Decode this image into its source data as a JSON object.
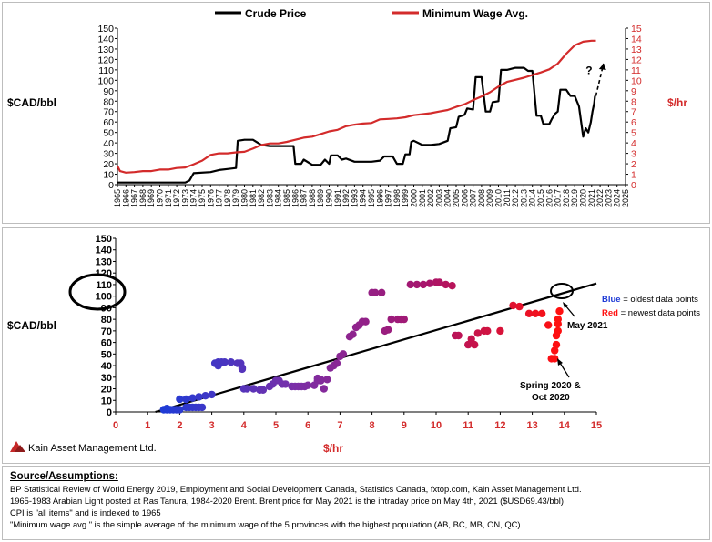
{
  "chart_data": [
    {
      "type": "line",
      "series": [
        {
          "name": "Crude Price",
          "axis": "left",
          "color": "#000000",
          "points": [
            [
              1965,
              2
            ],
            [
              1973,
              2
            ],
            [
              1973.5,
              4
            ],
            [
              1974,
              11
            ],
            [
              1976,
              12
            ],
            [
              1977,
              14
            ],
            [
              1978,
              15
            ],
            [
              1979,
              16
            ],
            [
              1979.2,
              42
            ],
            [
              1980,
              43
            ],
            [
              1981,
              43
            ],
            [
              1982,
              38
            ],
            [
              1983,
              37
            ],
            [
              1984,
              37
            ],
            [
              1985.8,
              37
            ],
            [
              1986,
              20
            ],
            [
              1986.7,
              20
            ],
            [
              1987,
              24
            ],
            [
              1988,
              19
            ],
            [
              1989,
              19
            ],
            [
              1989.5,
              24
            ],
            [
              1990,
              20
            ],
            [
              1990.2,
              28
            ],
            [
              1991,
              28
            ],
            [
              1991.5,
              24
            ],
            [
              1992,
              25
            ],
            [
              1993,
              22
            ],
            [
              1994,
              22
            ],
            [
              1995,
              22
            ],
            [
              1996,
              23
            ],
            [
              1996.5,
              27
            ],
            [
              1997.5,
              27
            ],
            [
              1998,
              20
            ],
            [
              1998.7,
              20
            ],
            [
              1999,
              29
            ],
            [
              1999.5,
              29
            ],
            [
              1999.7,
              41
            ],
            [
              2000,
              42
            ],
            [
              2001,
              38
            ],
            [
              2002,
              38
            ],
            [
              2003,
              39
            ],
            [
              2004,
              42
            ],
            [
              2004.3,
              54
            ],
            [
              2005,
              55
            ],
            [
              2005.3,
              65
            ],
            [
              2006,
              67
            ],
            [
              2006.3,
              73
            ],
            [
              2007,
              72
            ],
            [
              2007.3,
              103
            ],
            [
              2008,
              103
            ],
            [
              2008.5,
              70
            ],
            [
              2009,
              70
            ],
            [
              2009.3,
              79
            ],
            [
              2010,
              80
            ],
            [
              2010.3,
              110
            ],
            [
              2011,
              110
            ],
            [
              2012,
              112
            ],
            [
              2013,
              112
            ],
            [
              2013.5,
              109
            ],
            [
              2014,
              109
            ],
            [
              2014.5,
              66
            ],
            [
              2015,
              66
            ],
            [
              2015.3,
              58
            ],
            [
              2016,
              58
            ],
            [
              2016.3,
              63
            ],
            [
              2016.7,
              68
            ],
            [
              2017,
              70
            ],
            [
              2017.3,
              91
            ],
            [
              2018,
              91
            ],
            [
              2018.5,
              85
            ],
            [
              2019,
              85
            ],
            [
              2019.5,
              75
            ],
            [
              2020,
              46
            ],
            [
              2020.3,
              54
            ],
            [
              2020.6,
              50
            ],
            [
              2020.9,
              60
            ],
            [
              2021.1,
              70
            ],
            [
              2021.3,
              78
            ],
            [
              2021.4,
              85
            ]
          ]
        },
        {
          "name": "Minimum Wage Avg.",
          "axis": "right",
          "color": "#d32b2b",
          "points": [
            [
              1965,
              1.8
            ],
            [
              1965.3,
              1.3
            ],
            [
              1966,
              1.15
            ],
            [
              1967,
              1.2
            ],
            [
              1968,
              1.3
            ],
            [
              1969,
              1.3
            ],
            [
              1970,
              1.45
            ],
            [
              1971,
              1.45
            ],
            [
              1972,
              1.6
            ],
            [
              1973,
              1.65
            ],
            [
              1974,
              1.95
            ],
            [
              1975,
              2.3
            ],
            [
              1976,
              2.85
            ],
            [
              1977,
              3.0
            ],
            [
              1978,
              3.0
            ],
            [
              1979,
              3.1
            ],
            [
              1980,
              3.15
            ],
            [
              1981,
              3.45
            ],
            [
              1982,
              3.8
            ],
            [
              1983,
              3.95
            ],
            [
              1984,
              3.95
            ],
            [
              1985,
              4.1
            ],
            [
              1986,
              4.3
            ],
            [
              1987,
              4.5
            ],
            [
              1988,
              4.6
            ],
            [
              1989,
              4.85
            ],
            [
              1990,
              5.1
            ],
            [
              1991,
              5.25
            ],
            [
              1992,
              5.6
            ],
            [
              1993,
              5.75
            ],
            [
              1994,
              5.85
            ],
            [
              1995,
              5.9
            ],
            [
              1996,
              6.25
            ],
            [
              1997,
              6.3
            ],
            [
              1998,
              6.35
            ],
            [
              1999,
              6.45
            ],
            [
              2000,
              6.65
            ],
            [
              2001,
              6.75
            ],
            [
              2002,
              6.85
            ],
            [
              2003,
              7.0
            ],
            [
              2004,
              7.15
            ],
            [
              2005,
              7.45
            ],
            [
              2006,
              7.7
            ],
            [
              2007,
              8.1
            ],
            [
              2008,
              8.45
            ],
            [
              2009,
              8.85
            ],
            [
              2010,
              9.4
            ],
            [
              2011,
              9.85
            ],
            [
              2012,
              10.05
            ],
            [
              2013,
              10.25
            ],
            [
              2014,
              10.5
            ],
            [
              2015,
              10.75
            ],
            [
              2016,
              11.05
            ],
            [
              2017,
              11.6
            ],
            [
              2018,
              12.55
            ],
            [
              2019,
              13.35
            ],
            [
              2020,
              13.7
            ],
            [
              2021,
              13.8
            ],
            [
              2021.5,
              13.8
            ]
          ]
        }
      ],
      "x_ticks": [
        "1965",
        "1966",
        "1967",
        "1968",
        "1969",
        "1970",
        "1971",
        "1972",
        "1973",
        "1974",
        "1975",
        "1976",
        "1977",
        "1978",
        "1979",
        "1980",
        "1981",
        "1982",
        "1983",
        "1984",
        "1985",
        "1986",
        "1987",
        "1988",
        "1989",
        "1990",
        "1991",
        "1992",
        "1993",
        "1994",
        "1995",
        "1996",
        "1997",
        "1998",
        "1999",
        "2000",
        "2001",
        "2002",
        "2003",
        "2004",
        "2005",
        "2006",
        "2007",
        "2008",
        "2009",
        "2010",
        "2011",
        "2012",
        "2013",
        "2014",
        "2015",
        "2016",
        "2017",
        "2018",
        "2019",
        "2020",
        "2021",
        "2022",
        "2023",
        "2024",
        "2025"
      ],
      "xlim": [
        1965,
        2025
      ],
      "ylabel_left": "$CAD/bbl",
      "ylabel_right": "$/hr",
      "ylim_left": [
        0,
        150
      ],
      "ylim_right": [
        0,
        15
      ],
      "left_ticks": [
        "0",
        "10",
        "20",
        "30",
        "40",
        "50",
        "60",
        "70",
        "80",
        "90",
        "100",
        "110",
        "120",
        "130",
        "140",
        "150"
      ],
      "right_ticks": [
        "0",
        "1",
        "2",
        "3",
        "4",
        "5",
        "6",
        "7",
        "8",
        "9",
        "10",
        "11",
        "12",
        "13",
        "14",
        "15"
      ],
      "legend": [
        "Crude Price",
        "Minimum Wage Avg."
      ],
      "legend_position": "top",
      "annotation": "?",
      "annotation_arrow": {
        "from": [
          2021.5,
          85
        ],
        "to": [
          2022.4,
          116
        ]
      }
    },
    {
      "type": "scatter",
      "xlabel": "$/hr",
      "ylabel": "$CAD/bbl",
      "xlim": [
        0,
        15
      ],
      "ylim": [
        0,
        150
      ],
      "x_ticks": [
        "0",
        "1",
        "2",
        "3",
        "4",
        "5",
        "6",
        "7",
        "8",
        "9",
        "10",
        "11",
        "12",
        "13",
        "14",
        "15"
      ],
      "y_ticks": [
        "0",
        "10",
        "20",
        "30",
        "40",
        "50",
        "60",
        "70",
        "80",
        "90",
        "100",
        "110",
        "120",
        "130",
        "140",
        "150"
      ],
      "color_gradient": [
        "#1f3bd6",
        "#7a2fa8",
        "#a8156b",
        "#ff1010"
      ],
      "points": [
        [
          1.5,
          2
        ],
        [
          1.6,
          2
        ],
        [
          1.7,
          2
        ],
        [
          1.8,
          2
        ],
        [
          1.9,
          2
        ],
        [
          2.0,
          2
        ],
        [
          2.2,
          4
        ],
        [
          2.3,
          4
        ],
        [
          2.4,
          4
        ],
        [
          2.5,
          4
        ],
        [
          2.6,
          4
        ],
        [
          2.7,
          4
        ],
        [
          1.6,
          3
        ],
        [
          2.0,
          11
        ],
        [
          2.2,
          11
        ],
        [
          2.4,
          12
        ],
        [
          2.6,
          13
        ],
        [
          2.8,
          14
        ],
        [
          3.0,
          15
        ],
        [
          3.1,
          42
        ],
        [
          3.2,
          43
        ],
        [
          3.3,
          43
        ],
        [
          3.4,
          43
        ],
        [
          3.6,
          43
        ],
        [
          3.8,
          42
        ],
        [
          3.9,
          42
        ],
        [
          3.95,
          38
        ],
        [
          3.95,
          37
        ],
        [
          3.2,
          40
        ],
        [
          4.0,
          20
        ],
        [
          4.1,
          20
        ],
        [
          4.3,
          20
        ],
        [
          4.5,
          19
        ],
        [
          4.6,
          19
        ],
        [
          4.8,
          22
        ],
        [
          4.9,
          24
        ],
        [
          5.0,
          27
        ],
        [
          5.1,
          27
        ],
        [
          5.2,
          24
        ],
        [
          5.3,
          24
        ],
        [
          5.5,
          22
        ],
        [
          5.6,
          22
        ],
        [
          5.7,
          22
        ],
        [
          5.8,
          22
        ],
        [
          5.9,
          22
        ],
        [
          6.0,
          23
        ],
        [
          6.2,
          23
        ],
        [
          6.3,
          27
        ],
        [
          6.4,
          27
        ],
        [
          6.5,
          20
        ],
        [
          6.3,
          29
        ],
        [
          6.4,
          28
        ],
        [
          6.6,
          28
        ],
        [
          6.7,
          38
        ],
        [
          6.8,
          40
        ],
        [
          6.9,
          42
        ],
        [
          7.0,
          48
        ],
        [
          7.1,
          50
        ],
        [
          7.3,
          65
        ],
        [
          7.4,
          67
        ],
        [
          7.5,
          73
        ],
        [
          7.6,
          75
        ],
        [
          7.7,
          78
        ],
        [
          7.8,
          78
        ],
        [
          8.0,
          103
        ],
        [
          8.1,
          103
        ],
        [
          8.3,
          103
        ],
        [
          8.4,
          70
        ],
        [
          8.5,
          71
        ],
        [
          8.6,
          80
        ],
        [
          8.8,
          80
        ],
        [
          8.9,
          80
        ],
        [
          9.0,
          80
        ],
        [
          9.2,
          110
        ],
        [
          9.4,
          110
        ],
        [
          9.6,
          110
        ],
        [
          9.8,
          111
        ],
        [
          10.0,
          112
        ],
        [
          10.1,
          112
        ],
        [
          10.3,
          110
        ],
        [
          10.5,
          109
        ],
        [
          10.6,
          66
        ],
        [
          10.7,
          66
        ],
        [
          11.0,
          58
        ],
        [
          11.1,
          63
        ],
        [
          11.2,
          58
        ],
        [
          11.3,
          68
        ],
        [
          11.5,
          70
        ],
        [
          11.6,
          70
        ],
        [
          12.0,
          70
        ],
        [
          12.4,
          92
        ],
        [
          12.6,
          91
        ],
        [
          12.9,
          85
        ],
        [
          13.1,
          85
        ],
        [
          13.3,
          85
        ],
        [
          13.5,
          75
        ],
        [
          13.6,
          46
        ],
        [
          13.7,
          46
        ],
        [
          13.7,
          53
        ],
        [
          13.75,
          58
        ],
        [
          13.75,
          66
        ],
        [
          13.8,
          70
        ],
        [
          13.8,
          76
        ],
        [
          13.8,
          80
        ],
        [
          13.85,
          87
        ]
      ],
      "trendline": {
        "from": [
          0,
          -10
        ],
        "to": [
          15,
          111
        ]
      },
      "legend": [
        {
          "key": "Blue",
          "text": " = oldest data points"
        },
        {
          "key": "Red",
          "text": " = newest data points"
        }
      ],
      "legend_position": "right",
      "annotations": [
        "May 2021",
        "Spring 2020 &",
        "Oct 2020"
      ],
      "highlight_label": "110 / 100 circled"
    }
  ],
  "branding": {
    "company": "Kain Asset Management Ltd."
  },
  "source": {
    "title": "Source/Assumptions:",
    "lines": [
      "BP Statistical Review of World Energy 2019, Employment and Social Development Canada, Statistics Canada, fxtop.com, Kain Asset Management Ltd.",
      "1965-1983 Arabian Light posted at Ras Tanura, 1984-2020 Brent. Brent price for May 2021 is the intraday price on May 4th, 2021 ($USD69.43/bbl)",
      "CPI is \"all items\" and is indexed to 1965",
      "\"Minimum wage avg.\" is the simple average of the minimum wage of the 5 provinces with the highest population (AB, BC, MB, ON, QC)"
    ]
  }
}
